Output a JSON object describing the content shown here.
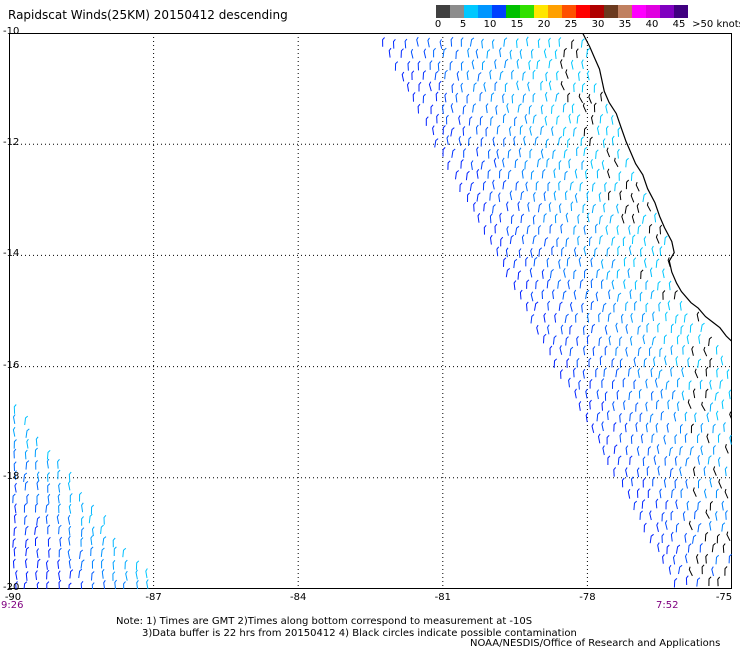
{
  "title": "Rapidscat Winds(25KM) 20150412 descending",
  "colorbar": {
    "colors": [
      "#404040",
      "#8c8c8c",
      "#00c8ff",
      "#0096ff",
      "#0040ff",
      "#00c000",
      "#30e000",
      "#ffe600",
      "#ffa000",
      "#ff5000",
      "#ff0000",
      "#b00000",
      "#6b3a1f",
      "#c08060",
      "#ff00ff",
      "#e000e0",
      "#8000c0",
      "#400080"
    ],
    "labels": [
      "0",
      "5",
      "10",
      "15",
      "20",
      "25",
      "30",
      "35",
      "40",
      "45",
      ">50 knots"
    ]
  },
  "map": {
    "lon_range": [
      -90,
      -75
    ],
    "lat_range": [
      -20,
      -10
    ],
    "lon_ticks": [
      "-90",
      "-87",
      "-84",
      "-81",
      "-78",
      "-75"
    ],
    "lat_ticks": [
      "-10",
      "-12",
      "-14",
      "-16",
      "-18",
      "-20"
    ],
    "grid": true,
    "wind_color_low": "#00c8ff",
    "wind_color_high": "#0020ff",
    "contamination_color": "#000000"
  },
  "swath_times": {
    "left": "9:26",
    "right": "7:52"
  },
  "notes": [
    "Note: 1) Times are GMT 2)Times along bottom correspond to measurement at -10S",
    "3)Data buffer is 22 hrs from 20150412 4) Black circles indicate possible contamination"
  ],
  "credit": "NOAA/NESDIS/Office of Research and Applications"
}
